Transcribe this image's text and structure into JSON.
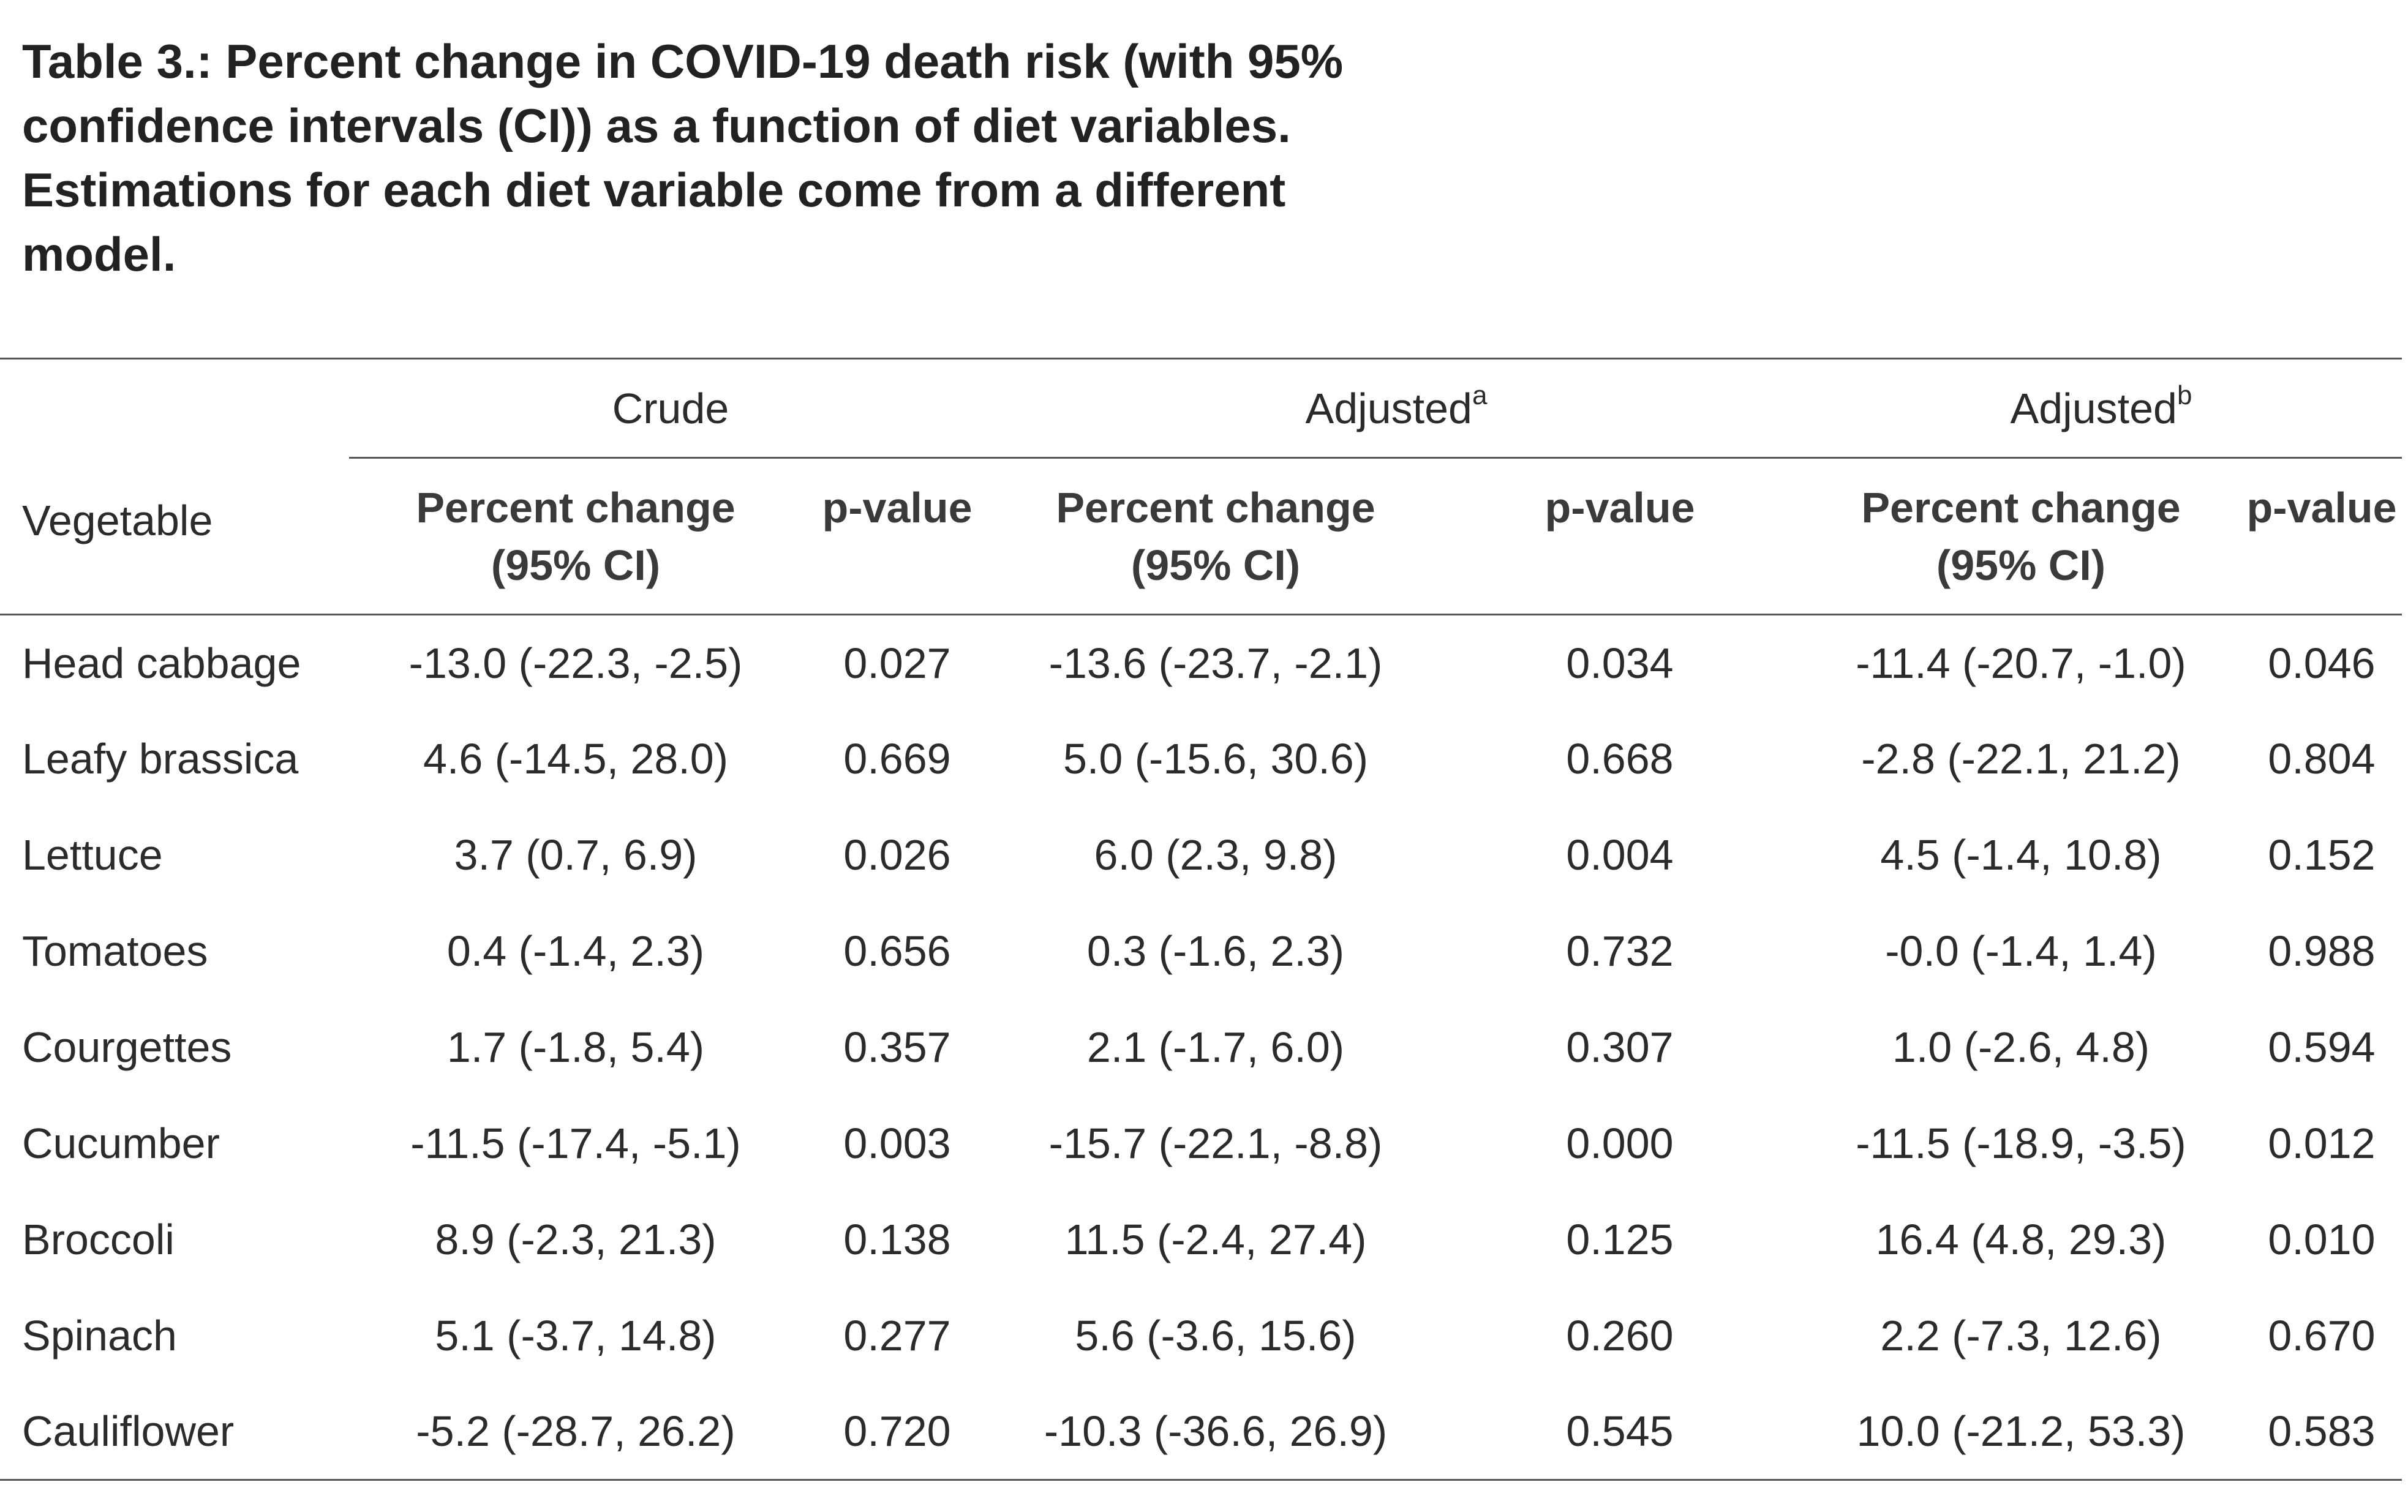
{
  "caption": {
    "lines": [
      "Table 3.: Percent change in COVID-19 death risk (with 95%",
      "confidence intervals (CI)) as a function of diet variables.",
      "Estimations for each diet variable come from a different",
      "model."
    ]
  },
  "table": {
    "groups": {
      "crude": "Crude",
      "adjusted_a": "Adjusted",
      "adjusted_a_sup": "a",
      "adjusted_b": "Adjusted",
      "adjusted_b_sup": "b"
    },
    "columns": {
      "vegetable": "Vegetable",
      "percent_change_line1": "Percent change",
      "percent_change_line2": "(95% CI)",
      "p_value": "p-value"
    },
    "rows": [
      {
        "vegetable": "Head cabbage",
        "crude_pc": "-13.0 (-22.3, -2.5)",
        "crude_p": "0.027",
        "adja_pc": "-13.6 (-23.7, -2.1)",
        "adja_p": "0.034",
        "adjb_pc": "-11.4 (-20.7, -1.0)",
        "adjb_p": "0.046"
      },
      {
        "vegetable": "Leafy brassica",
        "crude_pc": "4.6 (-14.5, 28.0)",
        "crude_p": "0.669",
        "adja_pc": "5.0 (-15.6, 30.6)",
        "adja_p": "0.668",
        "adjb_pc": "-2.8 (-22.1, 21.2)",
        "adjb_p": "0.804"
      },
      {
        "vegetable": "Lettuce",
        "crude_pc": "3.7 (0.7, 6.9)",
        "crude_p": "0.026",
        "adja_pc": "6.0 (2.3, 9.8)",
        "adja_p": "0.004",
        "adjb_pc": "4.5 (-1.4, 10.8)",
        "adjb_p": "0.152"
      },
      {
        "vegetable": "Tomatoes",
        "crude_pc": "0.4 (-1.4, 2.3)",
        "crude_p": "0.656",
        "adja_pc": "0.3 (-1.6, 2.3)",
        "adja_p": "0.732",
        "adjb_pc": "-0.0 (-1.4, 1.4)",
        "adjb_p": "0.988"
      },
      {
        "vegetable": "Courgettes",
        "crude_pc": "1.7 (-1.8, 5.4)",
        "crude_p": "0.357",
        "adja_pc": "2.1 (-1.7, 6.0)",
        "adja_p": "0.307",
        "adjb_pc": "1.0 (-2.6, 4.8)",
        "adjb_p": "0.594"
      },
      {
        "vegetable": "Cucumber",
        "crude_pc": "-11.5 (-17.4, -5.1)",
        "crude_p": "0.003",
        "adja_pc": "-15.7 (-22.1, -8.8)",
        "adja_p": "0.000",
        "adjb_pc": "-11.5 (-18.9, -3.5)",
        "adjb_p": "0.012"
      },
      {
        "vegetable": "Broccoli",
        "crude_pc": "8.9 (-2.3, 21.3)",
        "crude_p": "0.138",
        "adja_pc": "11.5 (-2.4, 27.4)",
        "adja_p": "0.125",
        "adjb_pc": "16.4 (4.8, 29.3)",
        "adjb_p": "0.010"
      },
      {
        "vegetable": "Spinach",
        "crude_pc": "5.1 (-3.7, 14.8)",
        "crude_p": "0.277",
        "adja_pc": "5.6 (-3.6, 15.6)",
        "adja_p": "0.260",
        "adjb_pc": "2.2 (-7.3, 12.6)",
        "adjb_p": "0.670"
      },
      {
        "vegetable": "Cauliflower",
        "crude_pc": "-5.2 (-28.7, 26.2)",
        "crude_p": "0.720",
        "adja_pc": "-10.3 (-36.6, 26.9)",
        "adja_p": "0.545",
        "adjb_pc": "10.0 (-21.2, 53.3)",
        "adjb_p": "0.583"
      }
    ]
  }
}
